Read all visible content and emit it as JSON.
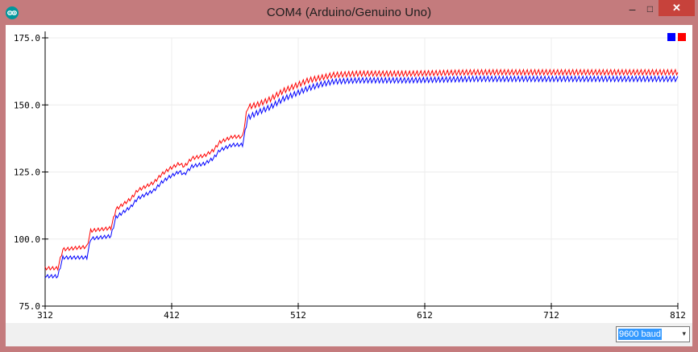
{
  "window": {
    "title": "COM4 (Arduino/Genuino Uno)",
    "controls": {
      "minimize": "–",
      "maximize": "□",
      "close": "✕"
    }
  },
  "baud": {
    "selected": "9600 baud",
    "caret": "▾"
  },
  "legend": {
    "colors": [
      "#0000ff",
      "#ff0000"
    ]
  },
  "chart_data": {
    "type": "line",
    "x_ticks": [
      "312",
      "412",
      "512",
      "612",
      "712",
      "812"
    ],
    "y_ticks": [
      "75.0",
      "100.0",
      "125.0",
      "150.0",
      "175.0"
    ],
    "xlim": [
      312,
      812
    ],
    "ylim": [
      75,
      175
    ],
    "grid": true,
    "legend_position": "top-right",
    "series": [
      {
        "color": "#ff0000",
        "points": [
          [
            312,
            89
          ],
          [
            322,
            89
          ],
          [
            326,
            96
          ],
          [
            345,
            97
          ],
          [
            348,
            103
          ],
          [
            364,
            104
          ],
          [
            368,
            111
          ],
          [
            380,
            115
          ],
          [
            385,
            118
          ],
          [
            398,
            121
          ],
          [
            404,
            124
          ],
          [
            410,
            126
          ],
          [
            418,
            128
          ],
          [
            422,
            127
          ],
          [
            428,
            130
          ],
          [
            438,
            131
          ],
          [
            445,
            133
          ],
          [
            450,
            136
          ],
          [
            460,
            138
          ],
          [
            468,
            138
          ],
          [
            472,
            149
          ],
          [
            480,
            150
          ],
          [
            490,
            152
          ],
          [
            500,
            155
          ],
          [
            510,
            157
          ],
          [
            520,
            159
          ],
          [
            530,
            160
          ],
          [
            540,
            161
          ],
          [
            560,
            161.5
          ],
          [
            600,
            161.5
          ],
          [
            650,
            162
          ],
          [
            700,
            162
          ],
          [
            750,
            162
          ],
          [
            800,
            162
          ],
          [
            812,
            162
          ]
        ]
      },
      {
        "color": "#0000ff",
        "points": [
          [
            312,
            86
          ],
          [
            322,
            86
          ],
          [
            326,
            93
          ],
          [
            345,
            93
          ],
          [
            348,
            100
          ],
          [
            364,
            101
          ],
          [
            368,
            108
          ],
          [
            380,
            112
          ],
          [
            385,
            115
          ],
          [
            398,
            118
          ],
          [
            404,
            121
          ],
          [
            410,
            123
          ],
          [
            418,
            125
          ],
          [
            422,
            124
          ],
          [
            428,
            127
          ],
          [
            438,
            128
          ],
          [
            445,
            130
          ],
          [
            450,
            133
          ],
          [
            460,
            135
          ],
          [
            468,
            135
          ],
          [
            472,
            145
          ],
          [
            480,
            147
          ],
          [
            490,
            149
          ],
          [
            500,
            152
          ],
          [
            510,
            154
          ],
          [
            520,
            156
          ],
          [
            530,
            157.5
          ],
          [
            540,
            158.5
          ],
          [
            560,
            159
          ],
          [
            600,
            159
          ],
          [
            650,
            159.5
          ],
          [
            700,
            159.5
          ],
          [
            750,
            159.5
          ],
          [
            800,
            159.5
          ],
          [
            812,
            159.5
          ]
        ]
      }
    ]
  }
}
